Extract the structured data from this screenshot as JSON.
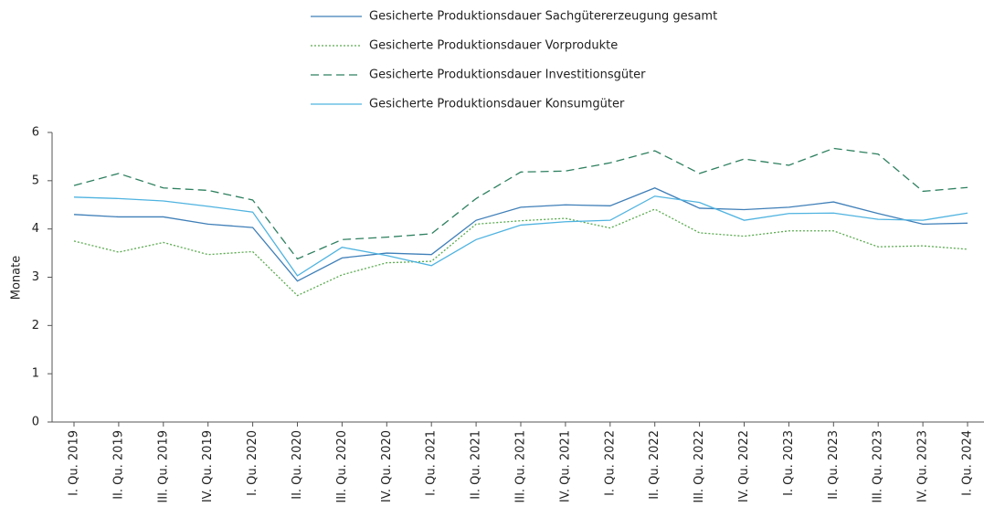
{
  "chart_data": {
    "type": "line",
    "ylabel": "Monate",
    "categories": [
      "I. Qu. 2019",
      "II. Qu. 2019",
      "III. Qu. 2019",
      "IV. Qu. 2019",
      "I. Qu. 2020",
      "II. Qu. 2020",
      "III. Qu. 2020",
      "IV. Qu. 2020",
      "I. Qu. 2021",
      "II. Qu. 2021",
      "III. Qu. 2021",
      "IV. Qu. 2021",
      "I. Qu. 2022",
      "II. Qu. 2022",
      "III. Qu. 2022",
      "IV. Qu. 2022",
      "I. Qu. 2023",
      "II. Qu. 2023",
      "III. Qu. 2023",
      "IV. Qu. 2023",
      "I. Qu. 2024"
    ],
    "series": [
      {
        "name": "Gesicherte Produktionsdauer Sachgütererzeugung gesamt",
        "color": "#3f7fb8",
        "dash": "solid",
        "values": [
          4.3,
          4.25,
          4.25,
          4.1,
          4.03,
          2.92,
          3.4,
          3.5,
          3.47,
          4.18,
          4.45,
          4.5,
          4.48,
          4.85,
          4.43,
          4.4,
          4.45,
          4.56,
          4.32,
          4.1,
          4.12
        ]
      },
      {
        "name": "Gesicherte Produktionsdauer Vorprodukte",
        "color": "#5aab4f",
        "dash": "dotted",
        "values": [
          3.75,
          3.52,
          3.72,
          3.47,
          3.53,
          2.62,
          3.05,
          3.3,
          3.33,
          4.1,
          4.17,
          4.22,
          4.02,
          4.41,
          3.92,
          3.85,
          3.96,
          3.96,
          3.63,
          3.65,
          3.58
        ]
      },
      {
        "name": "Gesicherte Produktionsdauer Investitionsgüter",
        "color": "#2e8060",
        "dash": "dashed",
        "values": [
          4.9,
          5.15,
          4.85,
          4.8,
          4.6,
          3.38,
          3.78,
          3.83,
          3.9,
          4.63,
          5.18,
          5.2,
          5.37,
          5.62,
          5.15,
          5.45,
          5.32,
          5.67,
          5.55,
          4.78,
          4.86
        ]
      },
      {
        "name": "Gesicherte Produktionsdauer Konsumgüter",
        "color": "#4fb3e0",
        "dash": "solid",
        "values": [
          4.66,
          4.63,
          4.58,
          4.47,
          4.35,
          3.03,
          3.62,
          3.45,
          3.24,
          3.78,
          4.08,
          4.15,
          4.18,
          4.68,
          4.55,
          4.18,
          4.32,
          4.33,
          4.2,
          4.18,
          4.33
        ]
      }
    ],
    "ylim": [
      0,
      6
    ],
    "yticks": [
      0,
      1,
      2,
      3,
      4,
      5,
      6
    ],
    "grid": false,
    "legend": "top"
  }
}
